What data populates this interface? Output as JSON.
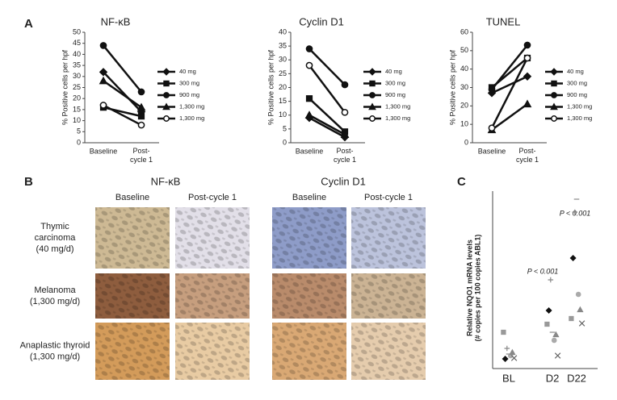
{
  "panel_labels": [
    "A",
    "B",
    "C"
  ],
  "chart_data": [
    {
      "type": "line",
      "title": "NF-κB",
      "y_label": "% Positive cells per hpf",
      "categories": [
        "Baseline",
        "Post-cycle 1"
      ],
      "ylim": [
        0,
        50
      ],
      "yticks": [
        0,
        5,
        10,
        15,
        20,
        25,
        30,
        35,
        40,
        45,
        50
      ],
      "series": [
        {
          "name": "40 mg",
          "marker": "diamond",
          "color": "#111",
          "values": [
            32,
            14
          ]
        },
        {
          "name": "300 mg",
          "marker": "square",
          "color": "#111",
          "values": [
            16,
            12
          ]
        },
        {
          "name": "900 mg",
          "marker": "circle",
          "color": "#111",
          "values": [
            44,
            23
          ]
        },
        {
          "name": "1,300 mg",
          "marker": "triangle",
          "color": "#111",
          "values": [
            28,
            16
          ]
        },
        {
          "name": "1,300 mg",
          "marker": "open-circle",
          "color": "#111",
          "values": [
            17,
            8
          ]
        }
      ]
    },
    {
      "type": "line",
      "title": "Cyclin D1",
      "y_label": "% Positive cells per hpf",
      "categories": [
        "Baseline",
        "Post-cycle 1"
      ],
      "ylim": [
        0,
        40
      ],
      "yticks": [
        0,
        5,
        10,
        15,
        20,
        25,
        30,
        35,
        40
      ],
      "series": [
        {
          "name": "40 mg",
          "marker": "diamond",
          "color": "#111",
          "values": [
            9,
            2
          ]
        },
        {
          "name": "300 mg",
          "marker": "square",
          "color": "#111",
          "values": [
            16,
            4
          ]
        },
        {
          "name": "900 mg",
          "marker": "circle",
          "color": "#111",
          "values": [
            34,
            21
          ]
        },
        {
          "name": "1,300 mg",
          "marker": "triangle",
          "color": "#111",
          "values": [
            10,
            3
          ]
        },
        {
          "name": "1,300 mg",
          "marker": "open-circle",
          "color": "#111",
          "values": [
            28,
            11
          ]
        }
      ]
    },
    {
      "type": "line",
      "title": "TUNEL",
      "y_label": "% Positive cells per hpf",
      "categories": [
        "Baseline",
        "Post-cycle 1"
      ],
      "ylim": [
        0,
        60
      ],
      "yticks": [
        0,
        10,
        20,
        30,
        40,
        50,
        60
      ],
      "series": [
        {
          "name": "40 mg",
          "marker": "diamond",
          "color": "#111",
          "values": [
            27,
            36
          ]
        },
        {
          "name": "300 mg",
          "marker": "square",
          "color": "#111",
          "values": [
            30,
            46
          ]
        },
        {
          "name": "900 mg",
          "marker": "circle",
          "color": "#111",
          "values": [
            29,
            53
          ]
        },
        {
          "name": "1,300 mg",
          "marker": "triangle",
          "color": "#111",
          "values": [
            7,
            21
          ]
        },
        {
          "name": "1,300 mg",
          "marker": "open-circle",
          "color": "#111",
          "values": [
            8,
            46
          ]
        }
      ]
    },
    {
      "type": "scatter",
      "y_label": [
        "Relative NQO1 mRNA levels",
        "(# copies per 100 copies ABL1)"
      ],
      "categories": [
        "BL",
        "D2",
        "D22"
      ],
      "ylim": [
        0,
        22
      ],
      "annotations": [
        "P < 0.001",
        "P < 0.001"
      ],
      "series": [
        {
          "marker": "square",
          "color": "#999",
          "values": [
            4.5,
            5.5,
            6.2
          ]
        },
        {
          "marker": "diamond",
          "color": "#111",
          "values": [
            1.2,
            7.2,
            13.7
          ]
        },
        {
          "marker": "plus",
          "color": "#888",
          "values": [
            2.5,
            11.0,
            19.4
          ]
        },
        {
          "marker": "dash",
          "color": "#888",
          "values": [
            1.8,
            4.5,
            21.0
          ]
        },
        {
          "marker": "circle",
          "color": "#aaa",
          "values": [
            1.6,
            3.5,
            9.2
          ]
        },
        {
          "marker": "triangle",
          "color": "#888",
          "values": [
            2.0,
            4.2,
            7.3
          ]
        },
        {
          "marker": "x",
          "color": "#666",
          "values": [
            1.3,
            1.6,
            5.6
          ]
        }
      ]
    }
  ],
  "panel_b": {
    "titles": [
      "NF-κB",
      "Cyclin D1"
    ],
    "columns": [
      "Baseline",
      "Post-cycle 1"
    ],
    "rows": [
      [
        "Thymic",
        "carcinoma",
        "(40 mg/d)"
      ],
      [
        "Melanoma",
        "(1,300 mg/d)"
      ],
      [
        "Anaplastic thyroid",
        "(1,300 mg/d)"
      ]
    ]
  }
}
